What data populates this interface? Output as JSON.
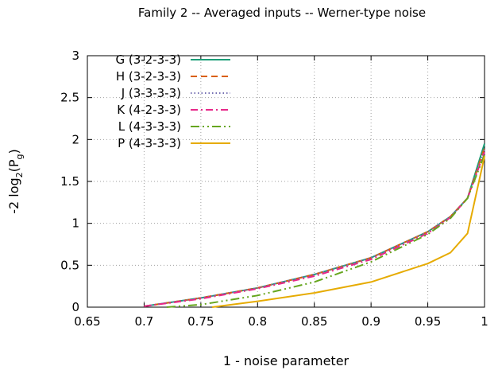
{
  "chart_data": {
    "type": "line",
    "title": "Family 2 -- Averaged inputs -- Werner-type noise",
    "xlabel": "1 - noise parameter",
    "ylabel": {
      "base": "-2 log",
      "sub1": "2",
      "mid": "(P",
      "sub2": "g",
      "end": ")"
    },
    "xlim": [
      0.65,
      1.0
    ],
    "ylim": [
      0,
      3
    ],
    "xticks": [
      "0.65",
      "0.7",
      "0.75",
      "0.8",
      "0.85",
      "0.9",
      "0.95",
      "1"
    ],
    "yticks": [
      "0",
      "0.5",
      "1",
      "1.5",
      "2",
      "2.5",
      "3"
    ],
    "grid": true,
    "legend_position": "top-left",
    "series": [
      {
        "name": "G (3-2-3-3)",
        "color": "#1b9e77",
        "dash": "solid",
        "x": [
          0.7,
          0.75,
          0.8,
          0.85,
          0.9,
          0.95,
          0.97,
          0.985,
          1.0
        ],
        "y": [
          0.01,
          0.11,
          0.23,
          0.39,
          0.59,
          0.9,
          1.08,
          1.3,
          1.95
        ]
      },
      {
        "name": "H (3-2-3-3)",
        "color": "#d95f02",
        "dash": "8,5",
        "x": [
          0.7,
          0.75,
          0.8,
          0.85,
          0.9,
          0.95,
          0.97,
          0.985,
          1.0
        ],
        "y": [
          0.01,
          0.11,
          0.23,
          0.39,
          0.59,
          0.9,
          1.08,
          1.3,
          1.9
        ]
      },
      {
        "name": "J (3-3-3-3)",
        "color": "#7570b3",
        "dash": "1.5,3",
        "x": [
          0.7,
          0.75,
          0.8,
          0.85,
          0.9,
          0.95,
          0.97,
          0.985,
          1.0
        ],
        "y": [
          0.01,
          0.11,
          0.23,
          0.39,
          0.59,
          0.9,
          1.08,
          1.3,
          1.88
        ]
      },
      {
        "name": "K (4-2-3-3)",
        "color": "#e7298a",
        "dash": "9,4,2,4",
        "x": [
          0.7,
          0.75,
          0.8,
          0.85,
          0.9,
          0.95,
          0.97,
          0.985,
          1.0
        ],
        "y": [
          0.01,
          0.1,
          0.22,
          0.37,
          0.57,
          0.88,
          1.07,
          1.3,
          1.85
        ]
      },
      {
        "name": "L (4-3-3-3)",
        "color": "#66a61e",
        "dash": "11,4,2,4,2,4",
        "x": [
          0.72,
          0.75,
          0.8,
          0.85,
          0.9,
          0.95,
          0.97,
          0.985,
          1.0
        ],
        "y": [
          0.0,
          0.03,
          0.14,
          0.3,
          0.54,
          0.87,
          1.06,
          1.3,
          1.82
        ]
      },
      {
        "name": "P (4-3-3-3)",
        "color": "#e6ab02",
        "dash": "solid",
        "x": [
          0.76,
          0.8,
          0.85,
          0.9,
          0.95,
          0.97,
          0.985,
          1.0
        ],
        "y": [
          0.0,
          0.07,
          0.17,
          0.3,
          0.52,
          0.65,
          0.88,
          1.8
        ]
      }
    ]
  }
}
